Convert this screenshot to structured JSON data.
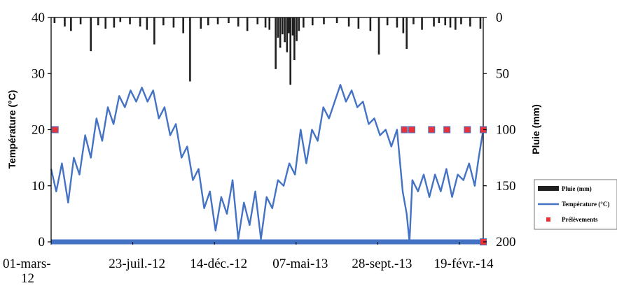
{
  "chart_data": {
    "type": "line",
    "ylabel": "Température (°C)",
    "y2label": "Pluie (mm)",
    "ylim": [
      0,
      40
    ],
    "y2lim": [
      200,
      0
    ],
    "yticks": [
      "0",
      "10",
      "20",
      "30",
      "40"
    ],
    "y2ticks": [
      "200",
      "150",
      "100",
      "50",
      "0"
    ],
    "xlim": [
      "2012-03-01",
      "2014-04-02"
    ],
    "xticks": [
      {
        "date": "2012-03-01",
        "label": "01-mars-",
        "label2": "12"
      },
      {
        "date": "2012-07-23",
        "label": "23-juil.-12"
      },
      {
        "date": "2012-12-14",
        "label": "14-déc.-12"
      },
      {
        "date": "2013-05-07",
        "label": "07-mai-13"
      },
      {
        "date": "2013-09-28",
        "label": "28-sept.-13"
      },
      {
        "date": "2014-02-19",
        "label": "19-févr.-14"
      }
    ],
    "legend": {
      "position": "right",
      "items": [
        {
          "label": "Pluie (mm)",
          "kind": "bar",
          "color": "#1f1f1f"
        },
        {
          "label": "Température (°C)",
          "kind": "line",
          "color": "#4472c4"
        },
        {
          "label": "Prélèvements",
          "kind": "marker",
          "color": "#e8333a"
        }
      ]
    },
    "series": [
      {
        "name": "Température (°C)",
        "axis": "left",
        "color": "#4472c4",
        "points": [
          [
            "2012-03-01",
            13
          ],
          [
            "2012-03-10",
            9
          ],
          [
            "2012-03-20",
            14
          ],
          [
            "2012-03-31",
            7
          ],
          [
            "2012-04-10",
            15
          ],
          [
            "2012-04-20",
            12
          ],
          [
            "2012-04-30",
            19
          ],
          [
            "2012-05-10",
            15
          ],
          [
            "2012-05-20",
            22
          ],
          [
            "2012-05-30",
            18
          ],
          [
            "2012-06-09",
            24
          ],
          [
            "2012-06-19",
            21
          ],
          [
            "2012-06-29",
            26
          ],
          [
            "2012-07-09",
            24
          ],
          [
            "2012-07-19",
            27
          ],
          [
            "2012-07-29",
            25
          ],
          [
            "2012-08-08",
            27.5
          ],
          [
            "2012-08-18",
            25
          ],
          [
            "2012-08-28",
            27
          ],
          [
            "2012-09-07",
            22
          ],
          [
            "2012-09-17",
            24
          ],
          [
            "2012-09-27",
            19
          ],
          [
            "2012-10-07",
            21
          ],
          [
            "2012-10-17",
            15
          ],
          [
            "2012-10-27",
            17
          ],
          [
            "2012-11-06",
            11
          ],
          [
            "2012-11-16",
            13
          ],
          [
            "2012-11-26",
            6
          ],
          [
            "2012-12-06",
            9
          ],
          [
            "2012-12-16",
            2
          ],
          [
            "2012-12-26",
            8
          ],
          [
            "2013-01-05",
            5
          ],
          [
            "2013-01-15",
            11
          ],
          [
            "2013-01-25",
            0.5
          ],
          [
            "2013-02-04",
            7
          ],
          [
            "2013-02-14",
            3
          ],
          [
            "2013-02-24",
            9
          ],
          [
            "2013-03-06",
            0.5
          ],
          [
            "2013-03-16",
            8
          ],
          [
            "2013-03-26",
            6
          ],
          [
            "2013-04-05",
            11
          ],
          [
            "2013-04-15",
            10
          ],
          [
            "2013-04-25",
            14
          ],
          [
            "2013-05-05",
            12
          ],
          [
            "2013-05-15",
            20
          ],
          [
            "2013-05-25",
            14
          ],
          [
            "2013-06-04",
            20
          ],
          [
            "2013-06-14",
            18
          ],
          [
            "2013-06-24",
            24
          ],
          [
            "2013-07-04",
            22
          ],
          [
            "2013-07-14",
            25
          ],
          [
            "2013-07-24",
            28
          ],
          [
            "2013-08-03",
            25
          ],
          [
            "2013-08-13",
            27
          ],
          [
            "2013-08-23",
            24
          ],
          [
            "2013-09-02",
            25
          ],
          [
            "2013-09-12",
            21
          ],
          [
            "2013-09-22",
            22
          ],
          [
            "2013-10-02",
            19
          ],
          [
            "2013-10-12",
            20
          ],
          [
            "2013-10-22",
            17
          ],
          [
            "2013-11-01",
            20
          ],
          [
            "2013-11-11",
            9
          ],
          [
            "2013-11-18",
            5
          ],
          [
            "2013-11-23",
            0
          ],
          [
            "2013-11-28",
            11
          ],
          [
            "2013-12-08",
            9
          ],
          [
            "2013-12-18",
            12
          ],
          [
            "2013-12-28",
            8
          ],
          [
            "2014-01-07",
            12
          ],
          [
            "2014-01-17",
            9
          ],
          [
            "2014-01-27",
            13
          ],
          [
            "2014-02-06",
            8
          ],
          [
            "2014-02-16",
            12
          ],
          [
            "2014-02-26",
            11
          ],
          [
            "2014-03-08",
            14
          ],
          [
            "2014-03-18",
            10
          ],
          [
            "2014-03-25",
            15
          ],
          [
            "2014-04-02",
            20
          ]
        ]
      },
      {
        "name": "Prélèvements",
        "axis": "left",
        "color": "#e8333a",
        "points": [
          [
            "2012-03-08",
            20
          ],
          [
            "2013-11-14",
            20
          ],
          [
            "2013-11-27",
            20
          ],
          [
            "2014-01-01",
            20
          ],
          [
            "2014-01-28",
            20
          ],
          [
            "2014-03-05",
            20
          ],
          [
            "2014-04-02",
            20
          ],
          [
            "2014-04-02",
            0
          ]
        ]
      },
      {
        "name": "Pluie (mm)",
        "axis": "right",
        "color": "#1f1f1f",
        "points": [
          [
            "2012-03-07",
            5
          ],
          [
            "2012-03-25",
            8
          ],
          [
            "2012-04-05",
            12
          ],
          [
            "2012-04-22",
            6
          ],
          [
            "2012-05-10",
            30
          ],
          [
            "2012-05-23",
            7
          ],
          [
            "2012-06-05",
            10
          ],
          [
            "2012-06-20",
            9
          ],
          [
            "2012-07-01",
            4
          ],
          [
            "2012-07-18",
            6
          ],
          [
            "2012-08-05",
            8
          ],
          [
            "2012-08-17",
            11
          ],
          [
            "2012-08-30",
            24
          ],
          [
            "2012-09-15",
            7
          ],
          [
            "2012-10-03",
            9
          ],
          [
            "2012-10-20",
            14
          ],
          [
            "2012-11-01",
            57
          ],
          [
            "2012-11-20",
            10
          ],
          [
            "2012-12-03",
            7
          ],
          [
            "2012-12-20",
            6
          ],
          [
            "2013-01-08",
            5
          ],
          [
            "2013-01-25",
            8
          ],
          [
            "2013-02-10",
            12
          ],
          [
            "2013-02-28",
            6
          ],
          [
            "2013-03-14",
            9
          ],
          [
            "2013-03-21",
            11
          ],
          [
            "2013-04-01",
            46
          ],
          [
            "2013-04-05",
            18
          ],
          [
            "2013-04-09",
            27
          ],
          [
            "2013-04-13",
            15
          ],
          [
            "2013-04-17",
            22
          ],
          [
            "2013-04-21",
            31
          ],
          [
            "2013-04-24",
            14
          ],
          [
            "2013-04-27",
            60
          ],
          [
            "2013-05-01",
            16
          ],
          [
            "2013-05-04",
            38
          ],
          [
            "2013-05-08",
            21
          ],
          [
            "2013-05-12",
            12
          ],
          [
            "2013-05-20",
            9
          ],
          [
            "2013-06-05",
            7
          ],
          [
            "2013-06-25",
            6
          ],
          [
            "2013-07-18",
            5
          ],
          [
            "2013-08-08",
            8
          ],
          [
            "2013-08-25",
            10
          ],
          [
            "2013-09-15",
            12
          ],
          [
            "2013-09-30",
            33
          ],
          [
            "2013-10-15",
            7
          ],
          [
            "2013-11-01",
            9
          ],
          [
            "2013-11-12",
            14
          ],
          [
            "2013-11-18",
            28
          ],
          [
            "2013-11-30",
            6
          ],
          [
            "2013-12-15",
            11
          ],
          [
            "2014-01-05",
            8
          ],
          [
            "2014-01-14",
            5
          ],
          [
            "2014-01-25",
            7
          ],
          [
            "2014-02-03",
            9
          ],
          [
            "2014-02-12",
            11
          ],
          [
            "2014-02-22",
            6
          ],
          [
            "2014-03-10",
            8
          ],
          [
            "2014-03-28",
            10
          ]
        ]
      }
    ]
  }
}
